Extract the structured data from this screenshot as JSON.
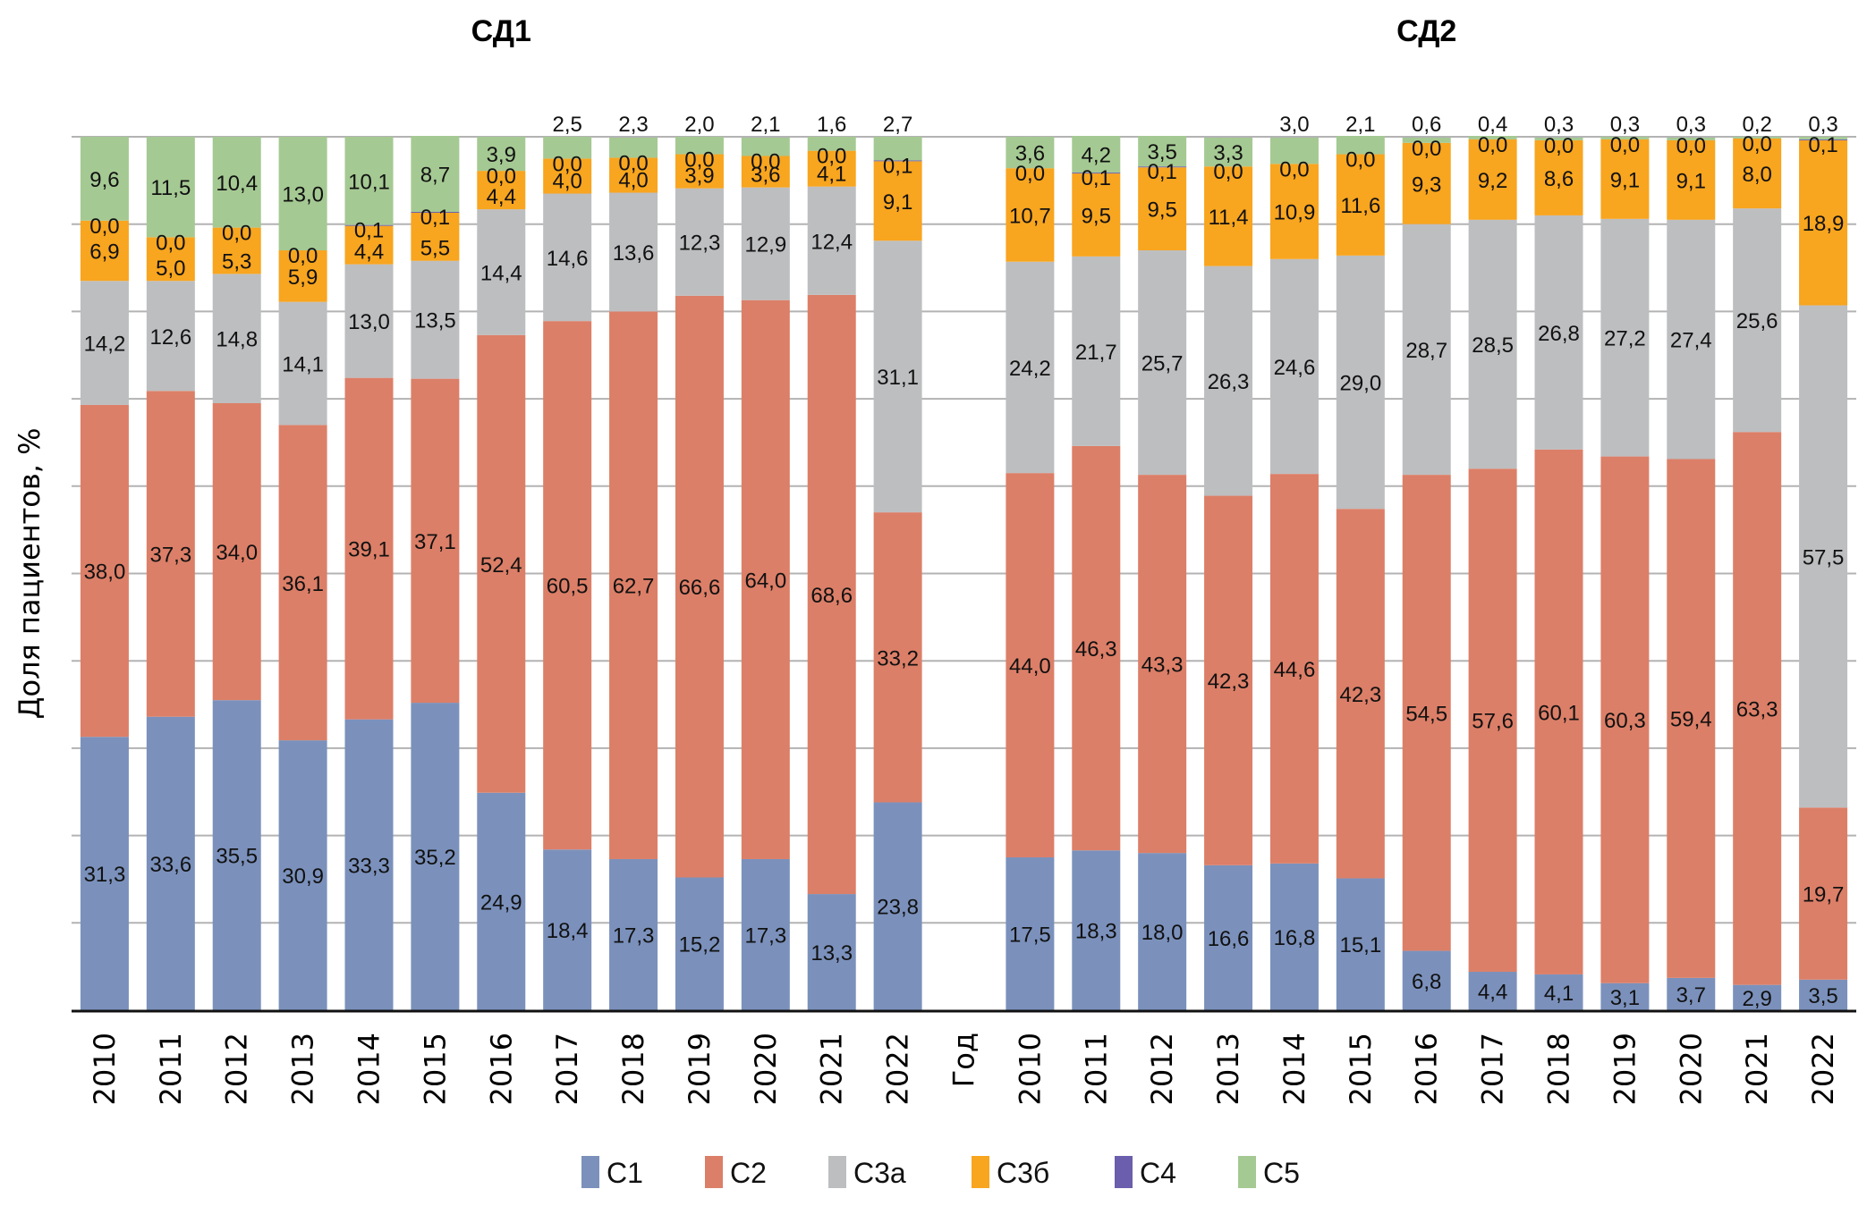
{
  "chart_data": {
    "type": "bar",
    "stacked": true,
    "ylabel": "Доля пациентов, %",
    "xlabel": "Год",
    "ylim": [
      0,
      100
    ],
    "grid": true,
    "legend_position": "bottom",
    "series_names": [
      "С1",
      "С2",
      "С3а",
      "С3б",
      "С4",
      "С5"
    ],
    "colors": {
      "С1": "#7b91bc",
      "С2": "#dc7f68",
      "С3а": "#bdbec0",
      "С3б": "#f8a51f",
      "С4": "#6a5ead",
      "С5": "#a5c993"
    },
    "panels": [
      {
        "title": "СД1",
        "categories": [
          "2010",
          "2011",
          "2012",
          "2013",
          "2014",
          "2015",
          "2016",
          "2017",
          "2018",
          "2019",
          "2020",
          "2021",
          "2022"
        ],
        "series": [
          {
            "name": "С1",
            "values": [
              31.3,
              33.6,
              35.5,
              30.9,
              33.3,
              35.2,
              24.9,
              18.4,
              17.3,
              15.2,
              17.3,
              13.3,
              23.8
            ]
          },
          {
            "name": "С2",
            "values": [
              38.0,
              37.3,
              34.0,
              36.1,
              39.1,
              37.1,
              52.4,
              60.5,
              62.7,
              66.6,
              64.0,
              68.6,
              33.2
            ]
          },
          {
            "name": "С3а",
            "values": [
              14.2,
              12.6,
              14.8,
              14.1,
              13.0,
              13.5,
              14.4,
              14.6,
              13.6,
              12.3,
              12.9,
              12.4,
              31.1
            ]
          },
          {
            "name": "С3б",
            "values": [
              6.9,
              5.0,
              5.3,
              5.9,
              4.4,
              5.5,
              4.4,
              4.0,
              4.0,
              3.9,
              3.6,
              4.1,
              9.1
            ]
          },
          {
            "name": "С4",
            "values": [
              0.0,
              0.0,
              0.0,
              0.0,
              0.1,
              0.1,
              0.0,
              0.0,
              0.0,
              0.0,
              0.0,
              0.0,
              0.1
            ]
          },
          {
            "name": "С5",
            "values": [
              9.6,
              11.5,
              10.4,
              13.0,
              10.1,
              8.7,
              3.9,
              2.5,
              2.3,
              2.0,
              2.1,
              1.6,
              2.7
            ]
          }
        ]
      },
      {
        "title": "СД2",
        "categories": [
          "2010",
          "2011",
          "2012",
          "2013",
          "2014",
          "2015",
          "2016",
          "2017",
          "2018",
          "2019",
          "2020",
          "2021",
          "2022"
        ],
        "series": [
          {
            "name": "С1",
            "values": [
              17.5,
              18.3,
              18.0,
              16.6,
              16.8,
              15.1,
              6.8,
              4.4,
              4.1,
              3.1,
              3.7,
              2.9,
              3.5
            ]
          },
          {
            "name": "С2",
            "values": [
              44.0,
              46.3,
              43.3,
              42.3,
              44.6,
              42.3,
              54.5,
              57.6,
              60.1,
              60.3,
              59.4,
              63.3,
              19.7
            ]
          },
          {
            "name": "С3а",
            "values": [
              24.2,
              21.7,
              25.7,
              26.3,
              24.6,
              29.0,
              28.7,
              28.5,
              26.8,
              27.2,
              27.4,
              25.6,
              57.5
            ]
          },
          {
            "name": "С3б",
            "values": [
              10.7,
              9.5,
              9.5,
              11.4,
              10.9,
              11.6,
              9.3,
              9.2,
              8.6,
              9.1,
              9.1,
              8.0,
              18.9
            ]
          },
          {
            "name": "С4",
            "values": [
              0.0,
              0.1,
              0.1,
              0.0,
              0.0,
              0.0,
              0.0,
              0.0,
              0.0,
              0.0,
              0.0,
              0.0,
              0.1
            ]
          },
          {
            "name": "С5",
            "values": [
              3.6,
              4.2,
              3.5,
              3.3,
              3.0,
              2.1,
              0.6,
              0.4,
              0.3,
              0.3,
              0.3,
              0.2,
              0.3
            ]
          }
        ]
      }
    ]
  }
}
